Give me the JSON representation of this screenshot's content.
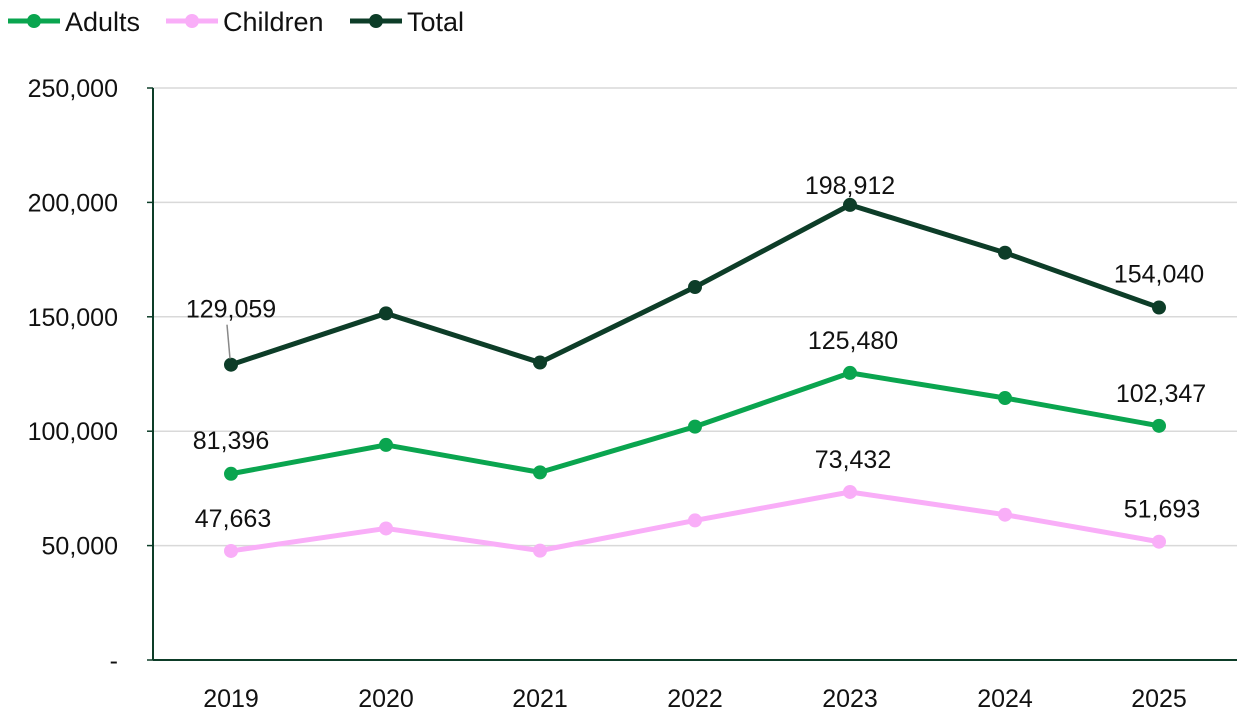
{
  "chart_data": {
    "type": "line",
    "categories": [
      "2019",
      "2020",
      "2021",
      "2022",
      "2023",
      "2024",
      "2025"
    ],
    "y_ticks": [
      0,
      50000,
      100000,
      150000,
      200000,
      250000
    ],
    "y_tick_labels": [
      "-",
      "50,000",
      "100,000",
      "150,000",
      "200,000",
      "250,000"
    ],
    "ylim": [
      0,
      250000
    ],
    "grid": "horizontal",
    "legend_position": "top-left",
    "series": [
      {
        "name": "Adults",
        "color": "#0aa54f",
        "values": [
          81396,
          94000,
          82000,
          102000,
          125480,
          114500,
          102347
        ],
        "labels": [
          {
            "index": 0,
            "text": "81,396"
          },
          {
            "index": 4,
            "text": "125,480"
          },
          {
            "index": 6,
            "text": "102,347"
          }
        ]
      },
      {
        "name": "Children",
        "color": "#f9aef8",
        "values": [
          47663,
          57500,
          47800,
          61000,
          73432,
          63500,
          51693
        ],
        "labels": [
          {
            "index": 0,
            "text": "47,663"
          },
          {
            "index": 4,
            "text": "73,432"
          },
          {
            "index": 6,
            "text": "51,693"
          }
        ]
      },
      {
        "name": "Total",
        "color": "#0d3d28",
        "values": [
          129059,
          151500,
          130000,
          163000,
          198912,
          178000,
          154040
        ],
        "labels": [
          {
            "index": 0,
            "text": "129,059"
          },
          {
            "index": 4,
            "text": "198,912"
          },
          {
            "index": 6,
            "text": "154,040"
          }
        ]
      }
    ]
  }
}
